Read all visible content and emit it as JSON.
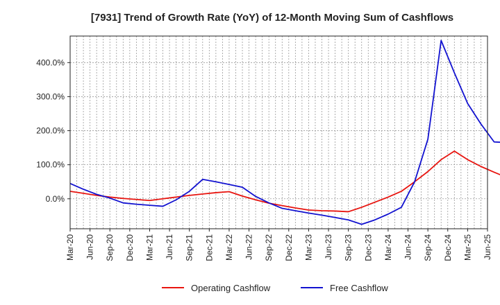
{
  "chart_data": {
    "type": "line",
    "title": "[7931]  Trend of Growth Rate (YoY) of 12-Month Moving Sum of Cashflows",
    "xlabel": "",
    "ylabel": "",
    "x_tick_labels": [
      "Mar-20",
      "Jun-20",
      "Sep-20",
      "Dec-20",
      "Mar-21",
      "Jun-21",
      "Sep-21",
      "Dec-21",
      "Mar-22",
      "Jun-22",
      "Sep-22",
      "Dec-22",
      "Mar-23",
      "Jun-23",
      "Sep-23",
      "Dec-23",
      "Mar-24",
      "Jun-24",
      "Sep-24",
      "Dec-24",
      "Mar-25",
      "Jun-25"
    ],
    "y_ticks": [
      0,
      100,
      200,
      300,
      400
    ],
    "y_tick_labels": [
      "0.0%",
      "100.0%",
      "200.0%",
      "300.0%",
      "400.0%"
    ],
    "ylim": [
      -88,
      478
    ],
    "grid": true,
    "legend_position": "bottom",
    "series": [
      {
        "name": "Operating Cashflow",
        "color": "#e8140f",
        "values": [
          22,
          16,
          10,
          5,
          1,
          -2,
          -5,
          0,
          5,
          10,
          14,
          18,
          21,
          8,
          -3,
          -13,
          -20,
          -27,
          -33,
          -35,
          -36,
          -38,
          -25,
          -10,
          5,
          22,
          50,
          80,
          115,
          140,
          115,
          95,
          78,
          62
        ]
      },
      {
        "name": "Free Cashflow",
        "color": "#1212d0",
        "values": [
          45,
          28,
          13,
          2,
          -12,
          -16,
          -19,
          -22,
          -3,
          22,
          57,
          50,
          42,
          34,
          7,
          -12,
          -28,
          -35,
          -42,
          -48,
          -55,
          -62,
          -75,
          -62,
          -45,
          -25,
          50,
          175,
          465,
          370,
          280,
          220,
          167,
          165
        ]
      }
    ]
  }
}
